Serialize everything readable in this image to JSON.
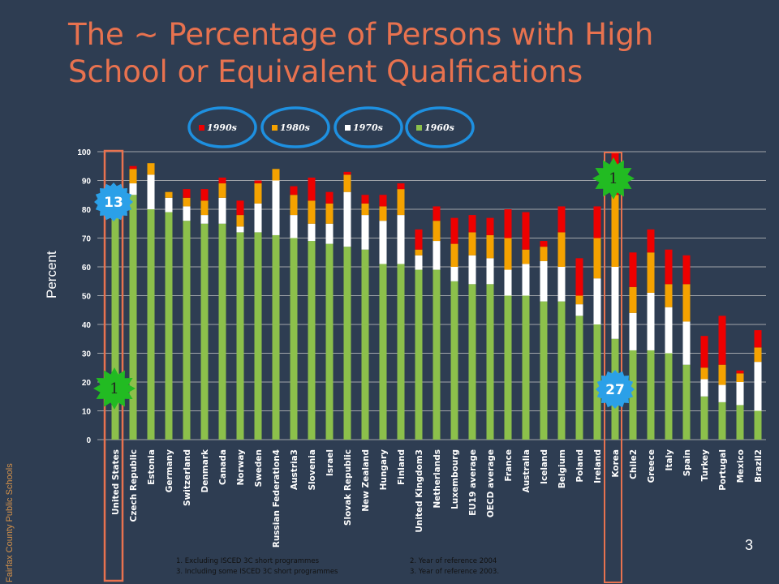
{
  "slide": {
    "title_line1": "The ~ Percentage of Persons with High",
    "title_line2": "School or Equivalent Qualfications",
    "side_note": "Fairfax County Public Schools",
    "page_number": "3",
    "footnotes": [
      "1. Excluding ISCED 3C short programmes",
      "3. Including some ISCED 3C short programmes",
      "2. Year of reference 2004",
      "3. Year of reference 2003."
    ],
    "badges": [
      "13",
      "1",
      "1",
      "27"
    ],
    "colors": {
      "background": "#2e3d52",
      "title": "#e8724f",
      "highlight_box": "#e8724f",
      "badge": "#2ba0e8",
      "star": "#22bb22",
      "legend_ring": "#1e90e0"
    }
  },
  "chart_data": {
    "type": "bar",
    "stacked": true,
    "ylabel": "Percent",
    "xlabel": "",
    "ylim": [
      0,
      100
    ],
    "yticks": [
      0,
      10,
      20,
      30,
      40,
      50,
      60,
      70,
      80,
      90,
      100
    ],
    "grid": true,
    "legend_position": "top",
    "categories": [
      "United States",
      "Czech Republic",
      "Estonia",
      "Germany",
      "Switzerland",
      "Denmark",
      "Canada",
      "Norway",
      "Sweden",
      "Russian Federation4",
      "Austria3",
      "Slovenia",
      "Israel",
      "Slovak Republic",
      "New Zealand",
      "Hungary",
      "Finland",
      "United Kingdom3",
      "Netherlands",
      "Luxembourg",
      "EU19  average",
      "OECD  average",
      "France",
      "Australia",
      "Iceland",
      "Belgium",
      "Poland",
      "Ireland",
      "Korea",
      "Chile2",
      "Greece",
      "Italy",
      "Spain",
      "Turkey",
      "Portugal",
      "Mexico",
      "Brazil2"
    ],
    "series": [
      {
        "name": "1960s",
        "color": "#8cc04b",
        "values": [
          87,
          85,
          80,
          79,
          76,
          75,
          75,
          72,
          72,
          71,
          70,
          69,
          68,
          67,
          66,
          61,
          61,
          59,
          59,
          55,
          54,
          54,
          50,
          50,
          48,
          48,
          43,
          40,
          35,
          31,
          31,
          30,
          26,
          15,
          13,
          12,
          10
        ]
      },
      {
        "name": "1970s",
        "color": "#ffffff",
        "values": [
          1,
          4,
          12,
          5,
          5,
          3,
          9,
          2,
          10,
          19,
          8,
          6,
          7,
          19,
          12,
          15,
          17,
          5,
          10,
          5,
          10,
          9,
          9,
          11,
          14,
          12,
          4,
          16,
          25,
          13,
          20,
          16,
          15,
          6,
          6,
          8,
          17
        ]
      },
      {
        "name": "1980s",
        "color": "#f5a200",
        "values": [
          0,
          5,
          4,
          2,
          3,
          5,
          5,
          4,
          7,
          4,
          7,
          8,
          7,
          6,
          4,
          5,
          9,
          2,
          7,
          8,
          8,
          8,
          11,
          5,
          5,
          12,
          3,
          14,
          25,
          9,
          14,
          8,
          13,
          4,
          7,
          3,
          5
        ]
      },
      {
        "name": "1990s",
        "color": "#ee0000",
        "values": [
          0,
          1,
          0,
          0,
          3,
          4,
          2,
          5,
          1,
          0,
          3,
          8,
          4,
          1,
          3,
          4,
          2,
          7,
          5,
          9,
          6,
          6,
          10,
          13,
          2,
          9,
          13,
          11,
          15,
          12,
          8,
          12,
          10,
          11,
          17,
          1,
          6
        ]
      }
    ],
    "legend_order": [
      "1990s",
      "1980s",
      "1970s",
      "1960s"
    ]
  }
}
